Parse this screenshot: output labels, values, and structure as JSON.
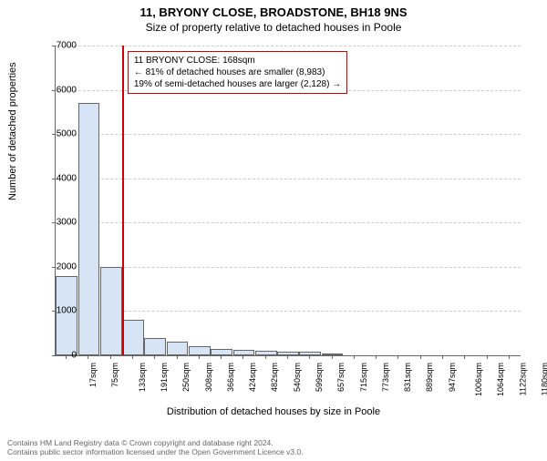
{
  "title_main": "11, BRYONY CLOSE, BROADSTONE, BH18 9NS",
  "title_sub": "Size of property relative to detached houses in Poole",
  "ylabel": "Number of detached properties",
  "xlabel": "Distribution of detached houses by size in Poole",
  "footer_line1": "Contains HM Land Registry data © Crown copyright and database right 2024.",
  "footer_line2": "Contains public sector information licensed under the Open Government Licence v3.0.",
  "chart": {
    "type": "histogram",
    "background_color": "#ffffff",
    "grid_color": "#cccccc",
    "axis_color": "#666666",
    "bar_fill": "#d6e4f5",
    "bar_border": "#666666",
    "ref_line_color": "#cc0000",
    "annotation_border": "#cc0000",
    "ylim": [
      0,
      7000
    ],
    "yticks": [
      0,
      1000,
      2000,
      3000,
      4000,
      5000,
      6000,
      7000
    ],
    "xtick_labels": [
      "17sqm",
      "75sqm",
      "133sqm",
      "191sqm",
      "250sqm",
      "308sqm",
      "366sqm",
      "424sqm",
      "482sqm",
      "540sqm",
      "599sqm",
      "657sqm",
      "715sqm",
      "773sqm",
      "831sqm",
      "889sqm",
      "947sqm",
      "1006sqm",
      "1064sqm",
      "1122sqm",
      "1180sqm"
    ],
    "bars": [
      1800,
      5700,
      2000,
      800,
      400,
      300,
      200,
      150,
      120,
      100,
      80,
      80,
      40,
      0,
      0,
      0,
      0,
      0,
      0,
      0,
      0
    ],
    "reference_bin_index": 2,
    "annotation_lines": [
      "11 BRYONY CLOSE: 168sqm",
      "← 81% of detached houses are smaller (8,983)",
      "19% of semi-detached houses are larger (2,128) →"
    ]
  },
  "fonts": {
    "title_main_size": 13,
    "title_sub_size": 12,
    "tick_size": 10,
    "label_size": 11,
    "annot_size": 10,
    "footer_size": 8.5
  }
}
